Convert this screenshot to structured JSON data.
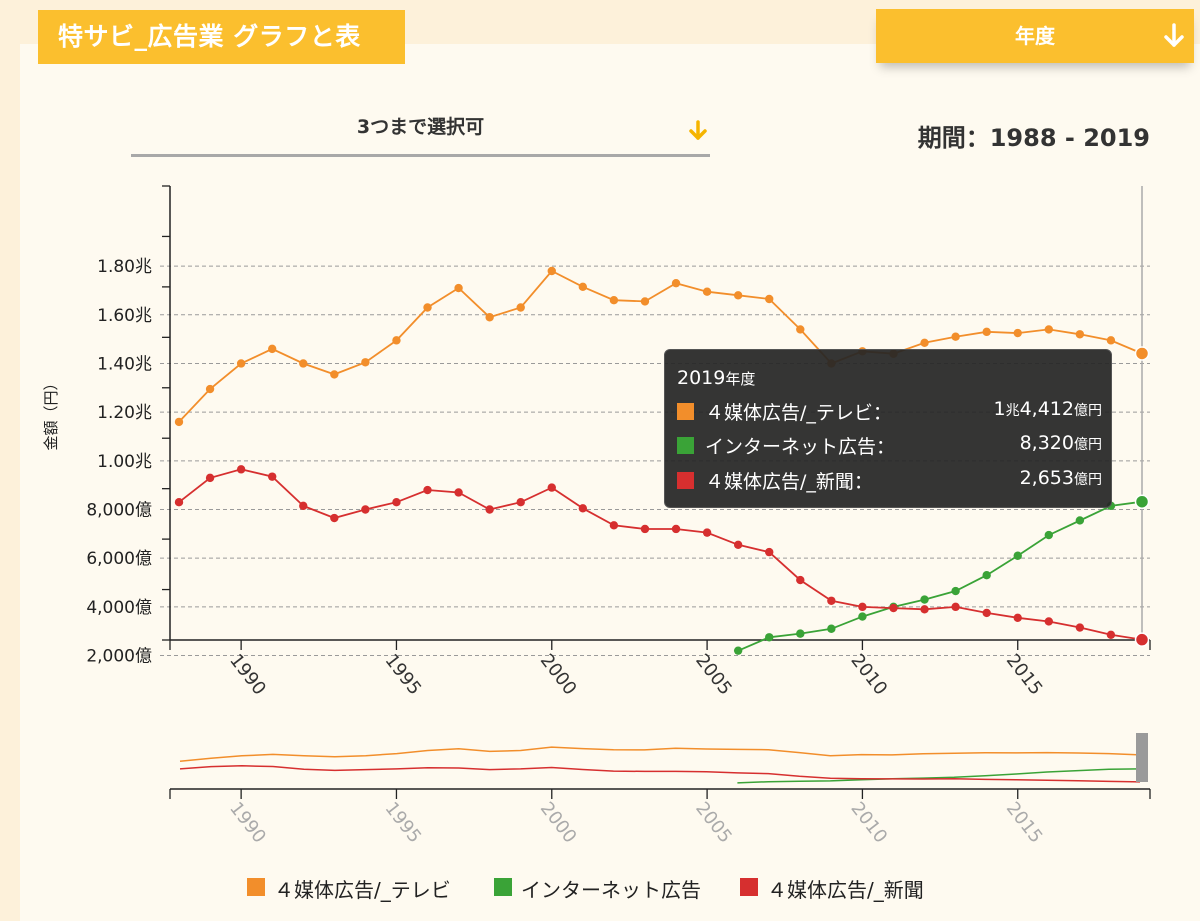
{
  "header": {
    "title": "特サビ_広告業 グラフと表",
    "period_dropdown_label": "年度",
    "period_dropdown_icon": "arrow-down-icon"
  },
  "selector": {
    "label": "3つまで選択可",
    "icon": "arrow-down-icon"
  },
  "period": {
    "text": "期間：1988 - 2019"
  },
  "tooltip": {
    "title": "2019",
    "title_suffix": "年度",
    "rows": [
      {
        "name": "４媒体広告/_テレビ：",
        "value_prefix": "1",
        "value_unit1": "兆",
        "value_main": "4,412",
        "value_unit2": "億円",
        "color": "#f28e2b"
      },
      {
        "name": "インターネット広告：",
        "value_prefix": "",
        "value_unit1": "",
        "value_main": "8,320",
        "value_unit2": "億円",
        "color": "#3aa337"
      },
      {
        "name": "４媒体広告/_新聞：",
        "value_prefix": "",
        "value_unit1": "",
        "value_main": "2,653",
        "value_unit2": "億円",
        "color": "#d62f2f"
      }
    ]
  },
  "chart_data": {
    "type": "line",
    "ylabel": "金額（円）",
    "xlabel": "",
    "x": [
      1988,
      1989,
      1990,
      1991,
      1992,
      1993,
      1994,
      1995,
      1996,
      1997,
      1998,
      1999,
      2000,
      2001,
      2002,
      2003,
      2004,
      2005,
      2006,
      2007,
      2008,
      2009,
      2010,
      2011,
      2012,
      2013,
      2014,
      2015,
      2016,
      2017,
      2018,
      2019
    ],
    "xlim": [
      1988,
      2019
    ],
    "ylim": [
      1200,
      19500
    ],
    "y_unit": "億円",
    "y_ticks": [
      {
        "value": 2000,
        "label": "2,000億"
      },
      {
        "value": 4000,
        "label": "4,000億"
      },
      {
        "value": 6000,
        "label": "6,000億"
      },
      {
        "value": 8000,
        "label": "8,000億"
      },
      {
        "value": 10000,
        "label": "1.00兆"
      },
      {
        "value": 12000,
        "label": "1.20兆"
      },
      {
        "value": 14000,
        "label": "1.40兆"
      },
      {
        "value": 16000,
        "label": "1.60兆"
      },
      {
        "value": 18000,
        "label": "1.80兆"
      }
    ],
    "x_ticks": [
      1990,
      1995,
      2000,
      2005,
      2010,
      2015
    ],
    "grid": true,
    "legend_position": "bottom",
    "series": [
      {
        "name": "４媒体広告/_テレビ",
        "color": "#f28e2b",
        "values": [
          11600,
          12950,
          14000,
          14600,
          14000,
          13550,
          14050,
          14950,
          16300,
          17100,
          15900,
          16300,
          17800,
          17150,
          16600,
          16550,
          17300,
          16950,
          16800,
          16650,
          15400,
          14000,
          14500,
          14400,
          14850,
          15100,
          15300,
          15250,
          15400,
          15200,
          14950,
          14412
        ]
      },
      {
        "name": "インターネット広告",
        "color": "#3aa337",
        "values": [
          null,
          null,
          null,
          null,
          null,
          null,
          null,
          null,
          null,
          null,
          null,
          null,
          null,
          null,
          null,
          null,
          null,
          null,
          2200,
          2750,
          2900,
          3100,
          3600,
          4000,
          4300,
          4650,
          5300,
          6100,
          6950,
          7550,
          8150,
          8320
        ]
      },
      {
        "name": "４媒体広告/_新聞",
        "color": "#d62f2f",
        "values": [
          8300,
          9300,
          9650,
          9350,
          8150,
          7650,
          8000,
          8300,
          8800,
          8700,
          8000,
          8300,
          8900,
          8050,
          7350,
          7200,
          7200,
          7050,
          6550,
          6250,
          5100,
          4250,
          4000,
          3950,
          3900,
          4000,
          3750,
          3550,
          3400,
          3150,
          2850,
          2653
        ]
      }
    ],
    "navigator": {
      "x_ticks": [
        1990,
        1995,
        2000,
        2005,
        2010,
        2015
      ]
    }
  },
  "legend": [
    {
      "label": "４媒体広告/_テレビ",
      "color": "#f28e2b"
    },
    {
      "label": "インターネット広告",
      "color": "#3aa337"
    },
    {
      "label": "４媒体広告/_新聞",
      "color": "#d62f2f"
    }
  ]
}
